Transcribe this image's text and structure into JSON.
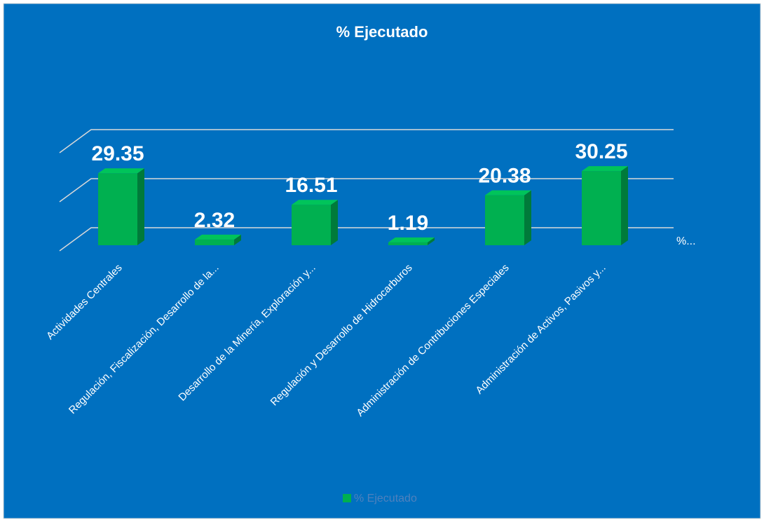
{
  "chart_data": {
    "type": "bar3d",
    "title": "% Ejecutado",
    "categories": [
      "Actividades Centrales",
      "Regulación, Fiscalización, Desarrollo de la...",
      "Desarrollo de la Minería, Exploración y...",
      "Regulación y Desarrollo de Hidrocarburos",
      "Administración de Contribuciones Especiales",
      "Administración de Activos, Pasivos y..."
    ],
    "series": [
      {
        "name": "% Ejecutado",
        "color": "#00b050",
        "values": [
          29.35,
          2.32,
          16.51,
          1.19,
          20.38,
          30.25
        ]
      }
    ],
    "z_axis_label": "%...",
    "ylim": [
      0,
      40
    ],
    "yticks": [
      0,
      20,
      40
    ],
    "grid": true,
    "legend": "bottom"
  }
}
